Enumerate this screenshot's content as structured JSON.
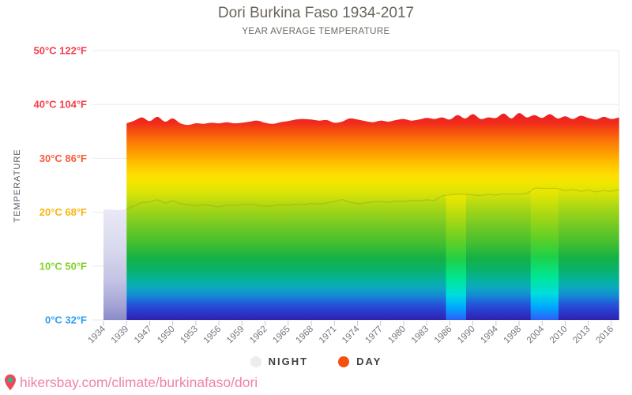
{
  "header": {
    "title": "Dori Burkina Faso 1934-2017",
    "subtitle": "YEAR AVERAGE TEMPERATURE"
  },
  "legend": {
    "items": [
      {
        "label": "NIGHT",
        "color": "#ececf1"
      },
      {
        "label": "DAY",
        "color": "#f4500f"
      }
    ]
  },
  "footer": {
    "url": "hikersbay.com/climate/burkinafaso/dori",
    "text_color": "#f083a6",
    "pin_icon": {
      "body": "#ee4956",
      "center": "#28b793"
    }
  },
  "chart_data": {
    "type": "area",
    "title": "Dori Burkina Faso 1934-2017",
    "subtitle": "YEAR AVERAGE TEMPERATURE",
    "xlabel": "",
    "ylabel": "TEMPERATURE",
    "ylim": [
      0,
      50
    ],
    "grid": true,
    "legend_position": "bottom",
    "y_ticks": [
      {
        "c": 50,
        "label": "50°C 122°F",
        "color": "#f4404e"
      },
      {
        "c": 40,
        "label": "40°C 104°F",
        "color": "#f4404e"
      },
      {
        "c": 30,
        "label": "30°C 86°F",
        "color": "#fa5a3a"
      },
      {
        "c": 20,
        "label": "20°C 68°F",
        "color": "#fbb40f"
      },
      {
        "c": 10,
        "label": "10°C 50°F",
        "color": "#7fd327"
      },
      {
        "c": 0,
        "label": "0°C 32°F",
        "color": "#2d9ff0"
      }
    ],
    "x_tick_labels": [
      "1934",
      "1939",
      "1947",
      "1950",
      "1953",
      "1956",
      "1959",
      "1962",
      "1965",
      "1968",
      "1971",
      "1974",
      "1977",
      "1980",
      "1983",
      "1986",
      "1990",
      "1994",
      "1998",
      "2004",
      "2010",
      "2013",
      "2016"
    ],
    "categories": [
      1934,
      1935,
      1937,
      1939,
      1940,
      1946,
      1947,
      1948,
      1949,
      1950,
      1951,
      1952,
      1953,
      1954,
      1955,
      1956,
      1957,
      1958,
      1959,
      1960,
      1961,
      1962,
      1963,
      1964,
      1965,
      1966,
      1967,
      1968,
      1969,
      1970,
      1971,
      1972,
      1973,
      1974,
      1975,
      1976,
      1977,
      1978,
      1979,
      1980,
      1981,
      1982,
      1983,
      1984,
      1985,
      1986,
      1987,
      1988,
      1990,
      1991,
      1992,
      1994,
      1995,
      1996,
      1998,
      2000,
      2002,
      2004,
      2006,
      2008,
      2010,
      2011,
      2012,
      2013,
      2014,
      2015,
      2016,
      2017
    ],
    "series": [
      {
        "name": "NIGHT",
        "values": [
          20.5,
          20.5,
          20.4,
          20.6,
          21.2,
          21.8,
          21.9,
          22.3,
          21.7,
          22.1,
          21.6,
          21.4,
          21.2,
          21.4,
          21.2,
          21.0,
          21.3,
          21.2,
          21.4,
          21.5,
          21.3,
          21.1,
          21.2,
          21.4,
          21.3,
          21.5,
          21.4,
          21.6,
          21.5,
          21.7,
          22.0,
          22.3,
          21.9,
          21.6,
          21.7,
          21.9,
          22.0,
          21.8,
          22.1,
          22.0,
          22.2,
          22.1,
          22.3,
          22.2,
          23.0,
          23.2,
          23.3,
          23.3,
          23.2,
          23.1,
          23.3,
          23.2,
          23.4,
          23.3,
          23.4,
          23.5,
          24.4,
          24.4,
          24.4,
          24.4,
          24.0,
          24.2,
          23.9,
          24.1,
          23.8,
          24.0,
          23.9,
          24.1
        ]
      },
      {
        "name": "DAY",
        "values": [
          null,
          null,
          null,
          36.5,
          37.0,
          37.6,
          36.9,
          37.7,
          36.8,
          37.4,
          36.5,
          36.2,
          36.5,
          36.4,
          36.6,
          36.5,
          36.7,
          36.5,
          36.6,
          36.8,
          37.0,
          36.6,
          36.4,
          36.7,
          36.9,
          37.2,
          37.3,
          37.2,
          37.0,
          37.1,
          36.6,
          36.8,
          37.4,
          37.2,
          36.9,
          36.7,
          37.0,
          36.8,
          37.1,
          37.3,
          37.0,
          37.2,
          37.5,
          37.3,
          37.6,
          37.2,
          38.0,
          37.4,
          38.2,
          37.3,
          37.6,
          37.5,
          38.3,
          37.4,
          38.4,
          37.6,
          38.0,
          37.5,
          38.2,
          37.4,
          37.8,
          37.3,
          37.9,
          37.5,
          37.2,
          37.7,
          37.3,
          37.6
        ]
      }
    ],
    "night_only_runs": [
      {
        "start_year": 1986,
        "end_year": 1988
      },
      {
        "start_year": 2002,
        "end_year": 2008
      }
    ],
    "style": {
      "day_gradient": [
        [
          0,
          "#2e21ad"
        ],
        [
          0.039,
          "#2b38cb"
        ],
        [
          0.078,
          "#2457d9"
        ],
        [
          0.117,
          "#1389d3"
        ],
        [
          0.156,
          "#0ba9c0"
        ],
        [
          0.195,
          "#05b29a"
        ],
        [
          0.247,
          "#0ab266"
        ],
        [
          0.299,
          "#15b147"
        ],
        [
          0.365,
          "#3fbe31"
        ],
        [
          0.469,
          "#7ccb22"
        ],
        [
          0.547,
          "#abd714"
        ],
        [
          0.612,
          "#d8e307"
        ],
        [
          0.664,
          "#f2e600"
        ],
        [
          0.703,
          "#ffdd00"
        ],
        [
          0.755,
          "#ffc100"
        ],
        [
          0.807,
          "#ff9d00"
        ],
        [
          0.859,
          "#fb7b07"
        ],
        [
          0.911,
          "#f6500f"
        ],
        [
          0.951,
          "#f02c1c"
        ],
        [
          1,
          "#ec1c24"
        ]
      ],
      "night_gradient": [
        [
          0,
          "#2e5ff6"
        ],
        [
          0.1,
          "#00a9ff"
        ],
        [
          0.2,
          "#00ddde"
        ],
        [
          0.33,
          "#00e694"
        ],
        [
          0.48,
          "#1ed048"
        ],
        [
          0.63,
          "#64cf25"
        ],
        [
          0.8,
          "#a8d813"
        ],
        [
          0.92,
          "#d6e206"
        ],
        [
          1,
          "#eee800"
        ]
      ],
      "night_fill": [
        [
          0,
          "#8a8ac6"
        ],
        [
          0.12,
          "#a2a2d4"
        ],
        [
          0.35,
          "#c3c3e4"
        ],
        [
          0.65,
          "#d9d9ee"
        ],
        [
          1,
          "#e9e9f7"
        ]
      ],
      "night_line_color": "rgba(125,145,25,0.30)",
      "grid_color": "#e9e9f0",
      "tick_color": "#b9c7e3",
      "x_label_color": "#73737e"
    }
  }
}
